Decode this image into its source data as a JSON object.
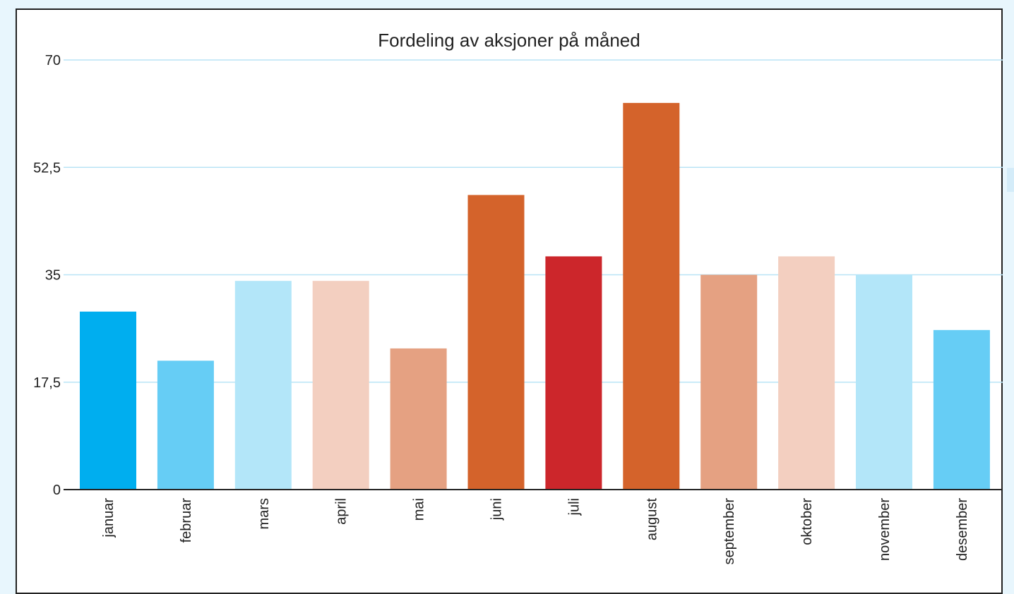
{
  "chart_data": {
    "type": "bar",
    "title": "Fordeling av aksjoner på måned",
    "xlabel": "",
    "ylabel": "",
    "ylim": [
      0,
      70
    ],
    "yticks": [
      "0",
      "17,5",
      "35",
      "52,5",
      "70"
    ],
    "ytick_values": [
      0,
      17.5,
      35,
      52.5,
      70
    ],
    "grid": true,
    "categories": [
      "januar",
      "februar",
      "mars",
      "april",
      "mai",
      "juni",
      "juli",
      "august",
      "september",
      "oktober",
      "november",
      "desember"
    ],
    "values": [
      29,
      21,
      34,
      34,
      23,
      48,
      38,
      63,
      35,
      38,
      35,
      26
    ],
    "colors": [
      "#00aeef",
      "#66cdf5",
      "#b3e6f9",
      "#f3cfc0",
      "#e5a182",
      "#d4632b",
      "#cc262b",
      "#d4632b",
      "#e5a182",
      "#f3cfc0",
      "#b3e6f9",
      "#66cdf5"
    ]
  }
}
